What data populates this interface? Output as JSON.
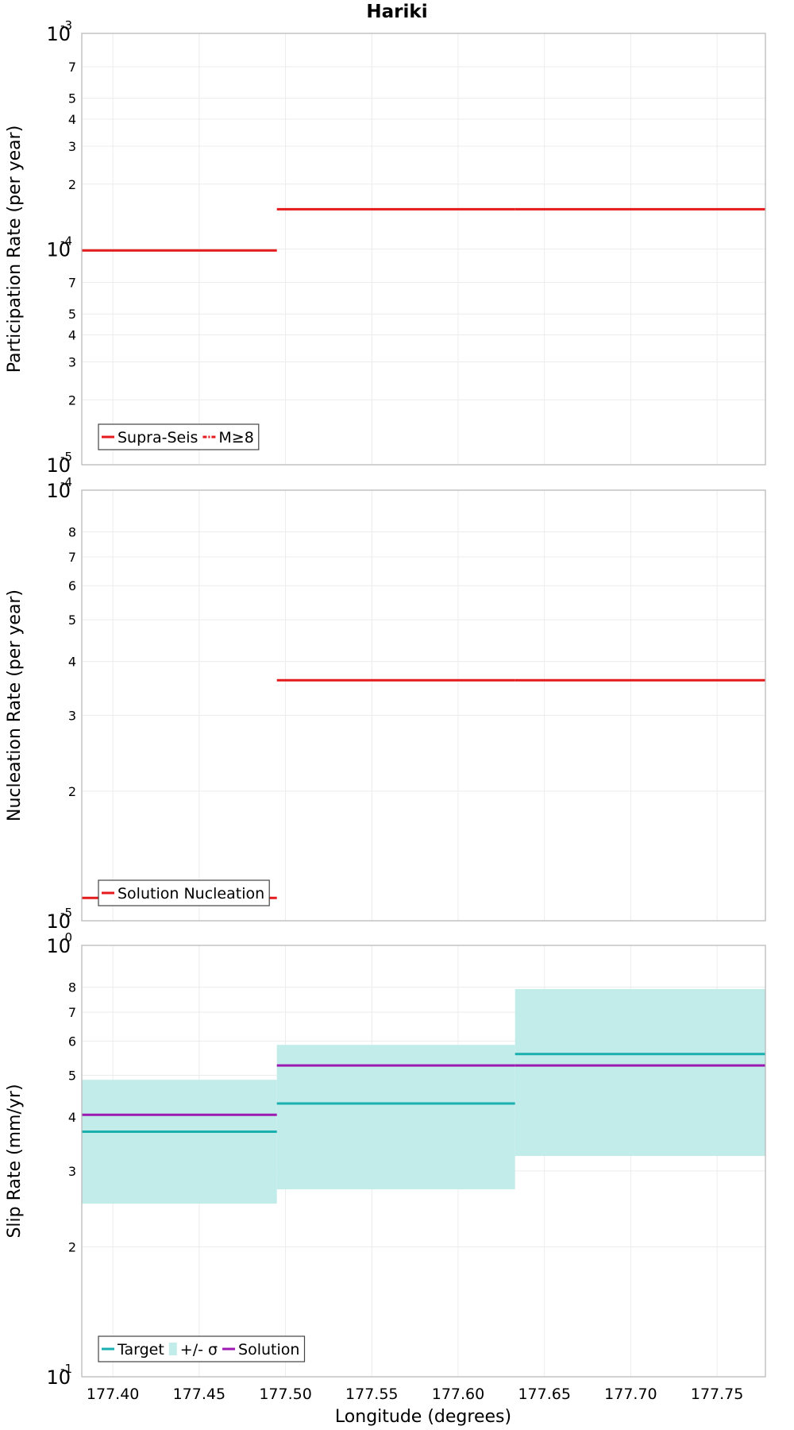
{
  "chart_data": {
    "type": "line",
    "title": "Hariki",
    "xlabel": "Longitude (degrees)",
    "xlim": [
      177.382,
      177.778
    ],
    "x_ticks": [
      "177.40",
      "177.45",
      "177.50",
      "177.55",
      "177.60",
      "177.65",
      "177.70",
      "177.75"
    ],
    "panels": [
      {
        "ylabel": "Participation Rate (per year)",
        "yscale": "log",
        "ylim": [
          1e-05,
          0.001
        ],
        "major_ticks": [
          {
            "value": 1e-05,
            "base": "10",
            "exp": "-5"
          },
          {
            "value": 0.0001,
            "base": "10",
            "exp": "-4"
          },
          {
            "value": 0.001,
            "base": "10",
            "exp": "-3"
          }
        ],
        "minor_ticks": [
          {
            "value": 2e-05,
            "label": "2"
          },
          {
            "value": 3e-05,
            "label": "3"
          },
          {
            "value": 4e-05,
            "label": "4"
          },
          {
            "value": 5e-05,
            "label": "5"
          },
          {
            "value": 7e-05,
            "label": "7"
          },
          {
            "value": 0.0002,
            "label": "2"
          },
          {
            "value": 0.0003,
            "label": "3"
          },
          {
            "value": 0.0004,
            "label": "4"
          },
          {
            "value": 0.0005,
            "label": "5"
          },
          {
            "value": 0.0007,
            "label": "7"
          }
        ],
        "series": [
          {
            "name": "Supra-Seis",
            "color": "#e41a1c",
            "style": "solid",
            "x": [
              177.382,
              177.495
            ],
            "y": [
              9.85e-05,
              9.85e-05
            ]
          },
          {
            "name": "Supra-Seis",
            "color": "#e41a1c",
            "style": "solid",
            "x": [
              177.495,
              177.633
            ],
            "y": [
              0.000153,
              0.000153
            ]
          },
          {
            "name": "Supra-Seis",
            "color": "#e41a1c",
            "style": "solid",
            "x": [
              177.633,
              177.778
            ],
            "y": [
              0.000153,
              0.000153
            ]
          }
        ],
        "legend": {
          "placement": "bottom-left",
          "entries": [
            {
              "label": "Supra-Seis",
              "color": "#e41a1c",
              "style": "solid"
            },
            {
              "label": "M≥8",
              "color": "#e41a1c",
              "style": "dashdot"
            }
          ]
        }
      },
      {
        "ylabel": "Nucleation Rate (per year)",
        "yscale": "log",
        "ylim": [
          1e-05,
          0.0001
        ],
        "major_ticks": [
          {
            "value": 1e-05,
            "base": "10",
            "exp": "-5"
          },
          {
            "value": 0.0001,
            "base": "10",
            "exp": "-4"
          }
        ],
        "minor_ticks": [
          {
            "value": 2e-05,
            "label": "2"
          },
          {
            "value": 3e-05,
            "label": "3"
          },
          {
            "value": 4e-05,
            "label": "4"
          },
          {
            "value": 5e-05,
            "label": "5"
          },
          {
            "value": 6e-05,
            "label": "6"
          },
          {
            "value": 7e-05,
            "label": "7"
          },
          {
            "value": 8e-05,
            "label": "8"
          }
        ],
        "series": [
          {
            "name": "Solution Nucleation",
            "color": "#e41a1c",
            "style": "solid",
            "x": [
              177.382,
              177.495
            ],
            "y": [
              1.13e-05,
              1.13e-05
            ]
          },
          {
            "name": "Solution Nucleation",
            "color": "#e41a1c",
            "style": "solid",
            "x": [
              177.495,
              177.633
            ],
            "y": [
              3.62e-05,
              3.62e-05
            ]
          },
          {
            "name": "Solution Nucleation",
            "color": "#e41a1c",
            "style": "solid",
            "x": [
              177.633,
              177.778
            ],
            "y": [
              3.62e-05,
              3.62e-05
            ]
          }
        ],
        "legend": {
          "placement": "bottom-left",
          "entries": [
            {
              "label": "Solution Nucleation",
              "color": "#e41a1c",
              "style": "solid"
            }
          ]
        }
      },
      {
        "ylabel": "Slip Rate (mm/yr)",
        "yscale": "log",
        "ylim": [
          0.1,
          1
        ],
        "major_ticks": [
          {
            "value": 0.1,
            "base": "10",
            "exp": "-1"
          },
          {
            "value": 1,
            "base": "10",
            "exp": "0"
          }
        ],
        "minor_ticks": [
          {
            "value": 0.2,
            "label": "2"
          },
          {
            "value": 0.3,
            "label": "3"
          },
          {
            "value": 0.4,
            "label": "4"
          },
          {
            "value": 0.5,
            "label": "5"
          },
          {
            "value": 0.6,
            "label": "6"
          },
          {
            "value": 0.7,
            "label": "7"
          },
          {
            "value": 0.8,
            "label": "8"
          }
        ],
        "bands": [
          {
            "name": "+/- σ",
            "color": "#c2ecea",
            "x": [
              177.382,
              177.495
            ],
            "y_low": 0.252,
            "y_high": 0.488
          },
          {
            "name": "+/- σ",
            "color": "#c2ecea",
            "x": [
              177.495,
              177.633
            ],
            "y_low": 0.272,
            "y_high": 0.588
          },
          {
            "name": "+/- σ",
            "color": "#c2ecea",
            "x": [
              177.633,
              177.778
            ],
            "y_low": 0.325,
            "y_high": 0.792
          }
        ],
        "series": [
          {
            "name": "Target",
            "color": "#1ab0b0",
            "style": "solid",
            "x": [
              177.382,
              177.495
            ],
            "y": [
              0.37,
              0.37
            ]
          },
          {
            "name": "Target",
            "color": "#1ab0b0",
            "style": "solid",
            "x": [
              177.495,
              177.633
            ],
            "y": [
              0.43,
              0.43
            ]
          },
          {
            "name": "Target",
            "color": "#1ab0b0",
            "style": "solid",
            "x": [
              177.633,
              177.778
            ],
            "y": [
              0.56,
              0.56
            ]
          },
          {
            "name": "Solution",
            "color": "#9c1ab0",
            "style": "solid",
            "x": [
              177.382,
              177.495
            ],
            "y": [
              0.405,
              0.405
            ]
          },
          {
            "name": "Solution",
            "color": "#9c1ab0",
            "style": "solid",
            "x": [
              177.495,
              177.633
            ],
            "y": [
              0.527,
              0.527
            ]
          },
          {
            "name": "Solution",
            "color": "#9c1ab0",
            "style": "solid",
            "x": [
              177.633,
              177.778
            ],
            "y": [
              0.527,
              0.527
            ]
          }
        ],
        "legend": {
          "placement": "bottom-left",
          "entries": [
            {
              "label": "Target",
              "color": "#1ab0b0",
              "style": "solid"
            },
            {
              "label": "+/- σ",
              "color": "#c2ecea",
              "style": "band"
            },
            {
              "label": "Solution",
              "color": "#9c1ab0",
              "style": "solid"
            }
          ]
        }
      }
    ]
  }
}
